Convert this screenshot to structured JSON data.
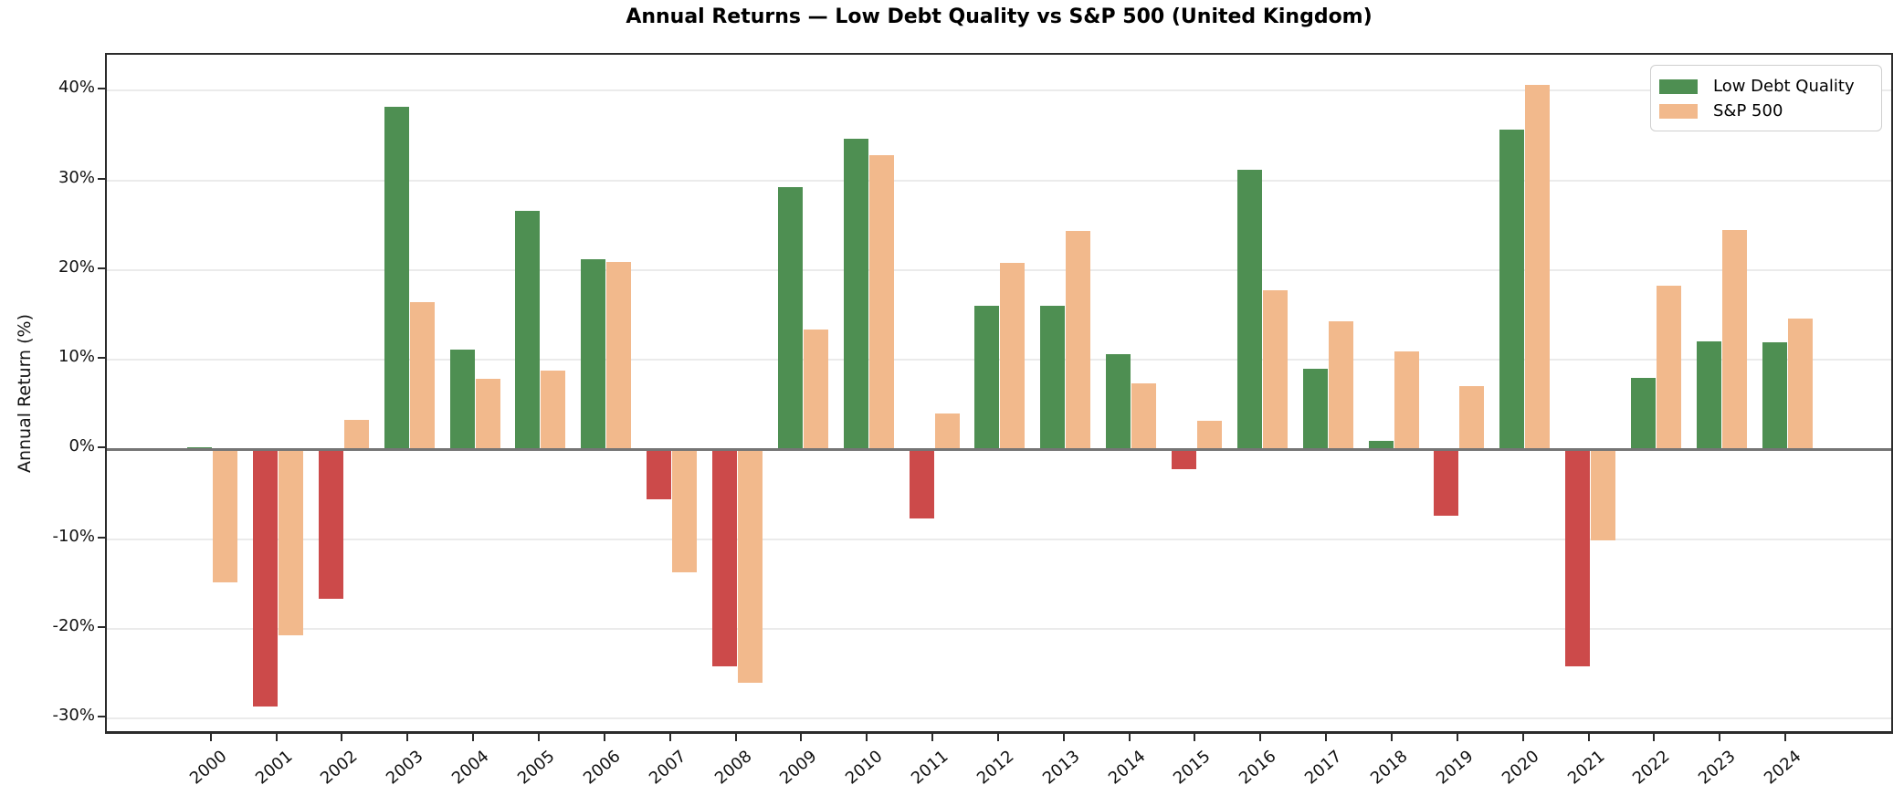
{
  "chart_data": {
    "type": "bar",
    "title": "Annual Returns — Low Debt Quality vs S&P 500 (United Kingdom)",
    "ylabel": "Annual Return (%)",
    "xlabel": "",
    "grid": "horizontal",
    "legend_position": "top-right",
    "ylim": [
      -31.9,
      44.0
    ],
    "ytick_values": [
      40,
      30,
      20,
      10,
      0,
      -10,
      -20,
      -30
    ],
    "ytick_labels": [
      "40%",
      "30%",
      "20%",
      "10%",
      "0%",
      "-10%",
      "-20%",
      "-30%"
    ],
    "categories": [
      "2000",
      "2001",
      "2002",
      "2003",
      "2004",
      "2005",
      "2006",
      "2007",
      "2008",
      "2009",
      "2010",
      "2011",
      "2012",
      "2013",
      "2014",
      "2015",
      "2016",
      "2017",
      "2018",
      "2019",
      "2020",
      "2021",
      "2022",
      "2023",
      "2024"
    ],
    "series": [
      {
        "name": "Low Debt Quality",
        "color_positive": "#4e8f52",
        "color_negative": "#cc4a4a",
        "values": [
          0.2,
          -28.6,
          -16.6,
          38.2,
          11.1,
          26.6,
          21.2,
          -5.6,
          -24.2,
          29.2,
          34.6,
          -7.7,
          16.0,
          16.0,
          10.6,
          -2.2,
          31.2,
          9.0,
          1.0,
          -7.4,
          35.7,
          -24.2,
          8.0,
          12.1,
          12.0
        ]
      },
      {
        "name": "S&P 500",
        "color_positive": "#f2b98c",
        "color_negative": "#f2b98c",
        "values": [
          -14.8,
          -20.7,
          3.3,
          16.4,
          7.9,
          8.8,
          20.9,
          -13.7,
          -26.0,
          13.4,
          32.8,
          4.0,
          20.8,
          24.4,
          7.4,
          3.2,
          17.7,
          14.3,
          10.9,
          7.1,
          40.6,
          -10.1,
          18.3,
          24.5,
          14.6
        ]
      }
    ]
  },
  "legend": {
    "items": [
      {
        "label": "Low Debt Quality",
        "color": "#4e8f52"
      },
      {
        "label": "S&P 500",
        "color": "#f2b98c"
      }
    ]
  }
}
